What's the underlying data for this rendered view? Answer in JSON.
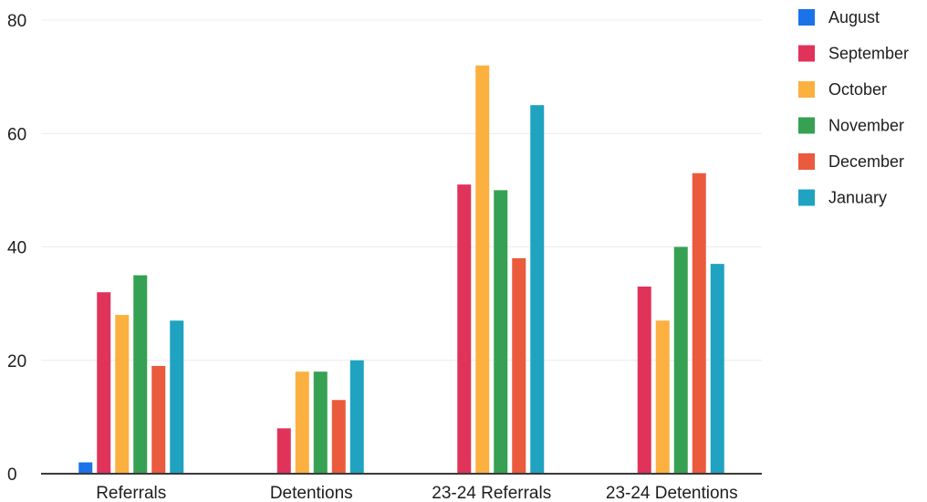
{
  "chart_data": {
    "type": "bar",
    "title": "",
    "xlabel": "",
    "ylabel": "",
    "ylim": [
      0,
      80
    ],
    "yticks": [
      0,
      20,
      40,
      60,
      80
    ],
    "grid": true,
    "legend_position": "right",
    "categories": [
      "Referrals",
      "Detentions",
      "23-24 Referrals",
      "23-24 Detentions"
    ],
    "series": [
      {
        "name": "August",
        "color": "#1a73e8",
        "values": [
          2,
          0,
          0,
          0
        ]
      },
      {
        "name": "September",
        "color": "#e0335a",
        "values": [
          32,
          8,
          51,
          33
        ]
      },
      {
        "name": "October",
        "color": "#fbb040",
        "values": [
          28,
          18,
          72,
          27
        ]
      },
      {
        "name": "November",
        "color": "#36a152",
        "values": [
          35,
          18,
          50,
          40
        ]
      },
      {
        "name": "December",
        "color": "#ea5a3d",
        "values": [
          19,
          13,
          38,
          53
        ]
      },
      {
        "name": "January",
        "color": "#1fa3c0",
        "values": [
          27,
          20,
          65,
          37
        ]
      }
    ]
  }
}
